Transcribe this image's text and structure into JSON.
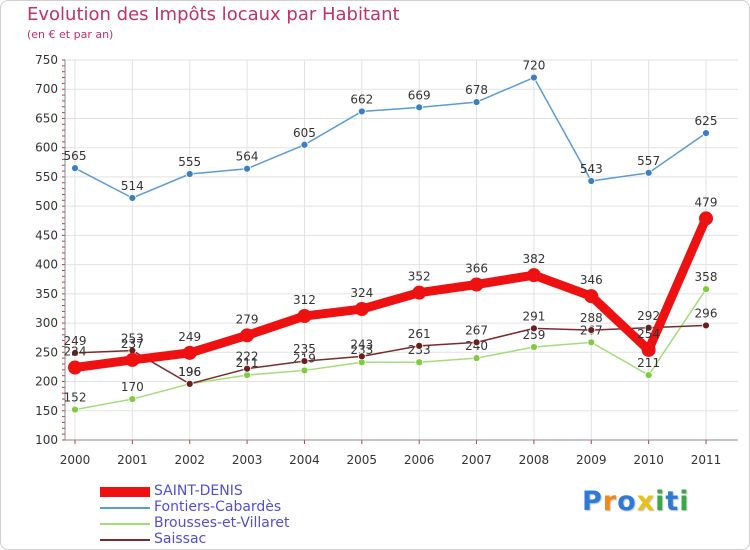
{
  "title": "Evolution des Impôts locaux par Habitant",
  "subtitle": "(en € et par an)",
  "logo": {
    "letters": [
      "P",
      "r",
      "o",
      "x",
      "i",
      "t",
      "i"
    ],
    "colors": [
      "#2e7bd6",
      "#f08a1c",
      "#2e7bd6",
      "#e8c21a",
      "#3aa844",
      "#2e7bd6",
      "#3aa844"
    ]
  },
  "chart_data": {
    "type": "line",
    "categories": [
      "2000",
      "2001",
      "2002",
      "2003",
      "2004",
      "2005",
      "2006",
      "2007",
      "2008",
      "2009",
      "2010",
      "2011"
    ],
    "ylim": [
      100,
      750
    ],
    "yticks": [
      100,
      150,
      200,
      250,
      300,
      350,
      400,
      450,
      500,
      550,
      600,
      650,
      700,
      750
    ],
    "grid": true,
    "legend_position": "bottom-left",
    "series": [
      {
        "name": "Fontiers-Cabardès",
        "color": "#5b9bd5",
        "marker": "#3c7fc0",
        "values": [
          565,
          514,
          555,
          564,
          605,
          662,
          669,
          678,
          720,
          543,
          557,
          625
        ]
      },
      {
        "name": "Brousses-et-Villaret",
        "color": "#a3dd7a",
        "marker": "#7ccc3c",
        "values": [
          152,
          170,
          196,
          211,
          219,
          233,
          233,
          240,
          259,
          267,
          211,
          358
        ]
      },
      {
        "name": "Saissac",
        "color": "#7a2c2c",
        "marker": "#6a1f1f",
        "values": [
          249,
          253,
          196,
          222,
          235,
          243,
          261,
          267,
          291,
          288,
          292,
          296
        ]
      },
      {
        "name": "SAINT-DENIS",
        "color": "#ee1111",
        "marker": "#ee1111",
        "values": [
          224,
          237,
          249,
          279,
          312,
          324,
          352,
          366,
          382,
          346,
          254,
          479
        ]
      }
    ],
    "labels": {
      "Fontiers-Cabardès": [
        "565",
        "514",
        "555",
        "564",
        "605",
        "662",
        "669",
        "678",
        "720",
        "543",
        "557",
        "625"
      ],
      "Brousses-et-Villaret": [
        "152",
        "170",
        "196",
        "211",
        "219",
        "233",
        "233",
        "240",
        "259",
        "267",
        "211",
        "358"
      ],
      "Saissac": [
        "249",
        "253",
        "196",
        "222",
        "235",
        "243",
        "261",
        "267",
        "291",
        "288",
        "292",
        "296"
      ],
      "SAINT-DENIS": [
        "224",
        "237",
        "249",
        "279",
        "312",
        "324",
        "352",
        "366",
        "382",
        "346",
        "254",
        "479"
      ]
    }
  },
  "legend": [
    {
      "label": "SAINT-DENIS",
      "color": "#ee1111"
    },
    {
      "label": "Fontiers-Cabardès",
      "color": "#5b9bd5"
    },
    {
      "label": "Brousses-et-Villaret",
      "color": "#a3dd7a"
    },
    {
      "label": "Saissac",
      "color": "#7a2c2c"
    }
  ]
}
